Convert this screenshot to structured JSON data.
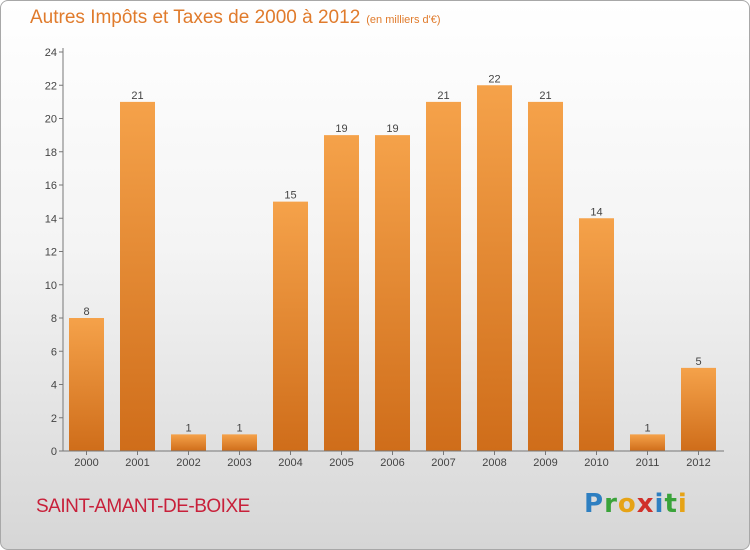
{
  "title": "Autres Impôts et Taxes de 2000 à 2012",
  "unit": "(en milliers d'€)",
  "location": "SAINT-AMANT-DE-BOIXE",
  "logo": {
    "text": "Proxiti",
    "letters": [
      {
        "char": "P",
        "color": "#2e7fc1"
      },
      {
        "char": "r",
        "color": "#3aa33a"
      },
      {
        "char": "o",
        "color": "#e6a316"
      },
      {
        "char": "x",
        "color": "#d0302a"
      },
      {
        "char": "i",
        "color": "#2e7fc1"
      },
      {
        "char": "t",
        "color": "#3aa33a"
      },
      {
        "char": "i",
        "color": "#e6a316"
      }
    ]
  },
  "colors": {
    "bar_light": "#f5a24a",
    "bar_dark": "#cf6d1a",
    "title": "#e07b2c",
    "location": "#c8203a"
  },
  "chart_data": {
    "type": "bar",
    "title": "Autres Impôts et Taxes de 2000 à 2012",
    "xlabel": "",
    "ylabel": "",
    "categories": [
      "2000",
      "2001",
      "2002",
      "2003",
      "2004",
      "2005",
      "2006",
      "2007",
      "2008",
      "2009",
      "2010",
      "2011",
      "2012"
    ],
    "values": [
      8,
      21,
      1,
      1,
      15,
      19,
      19,
      21,
      22,
      21,
      14,
      1,
      5
    ],
    "ylim": [
      0,
      24
    ],
    "yticks": [
      0,
      2,
      4,
      6,
      8,
      10,
      12,
      14,
      16,
      18,
      20,
      22,
      24
    ],
    "grid": false,
    "legend": "none"
  }
}
